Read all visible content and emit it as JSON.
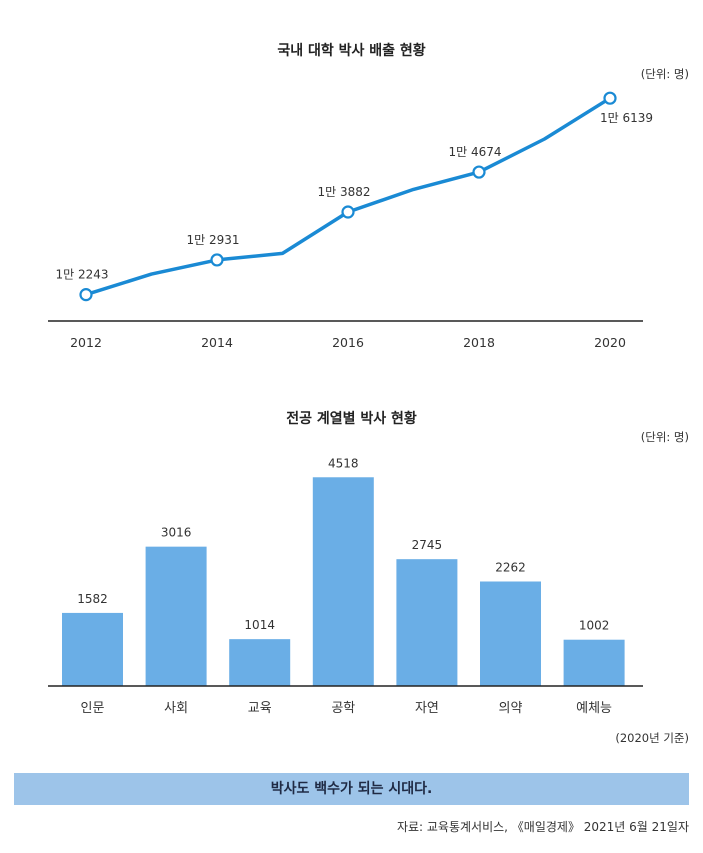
{
  "colors": {
    "line": "#1a8ad4",
    "bar": "#6aaee6",
    "banner": "#9dc4e9",
    "axis": "#222222"
  },
  "chart_data": [
    {
      "type": "line",
      "title": "국내 대학 박사 배출 현황",
      "unit": "(단위: 명)",
      "x": [
        2012,
        2013,
        2014,
        2015,
        2016,
        2017,
        2018,
        2019,
        2020
      ],
      "values": [
        12243,
        12650,
        12931,
        13060,
        13882,
        14330,
        14674,
        15330,
        16139
      ],
      "markers": [
        {
          "x": 2012,
          "value": 12243,
          "label": "1만 2243"
        },
        {
          "x": 2014,
          "value": 12931,
          "label": "1만 2931"
        },
        {
          "x": 2016,
          "value": 13882,
          "label": "1만 3882"
        },
        {
          "x": 2018,
          "value": 14674,
          "label": "1만 4674"
        },
        {
          "x": 2020,
          "value": 16139,
          "label": "1만 6139"
        }
      ],
      "xticks": [
        "2012",
        "2014",
        "2016",
        "2018",
        "2020"
      ],
      "ylim": [
        11700,
        16500
      ]
    },
    {
      "type": "bar",
      "title": "전공 계열별 박사 현황",
      "unit": "(단위: 명)",
      "categories": [
        "인문",
        "사회",
        "교육",
        "공학",
        "자연",
        "의약",
        "예체능"
      ],
      "values": [
        1582,
        3016,
        1014,
        4518,
        2745,
        2262,
        1002
      ],
      "value_labels": [
        "1582",
        "3016",
        "1014",
        "4518",
        "2745",
        "2262",
        "1002"
      ],
      "ylim": [
        0,
        5000
      ],
      "note": "(2020년 기준)"
    }
  ],
  "banner_text": "박사도 백수가 되는 시대다.",
  "source": "자료: 교육통계서비스, 《매일경제》 2021년 6월 21일자"
}
